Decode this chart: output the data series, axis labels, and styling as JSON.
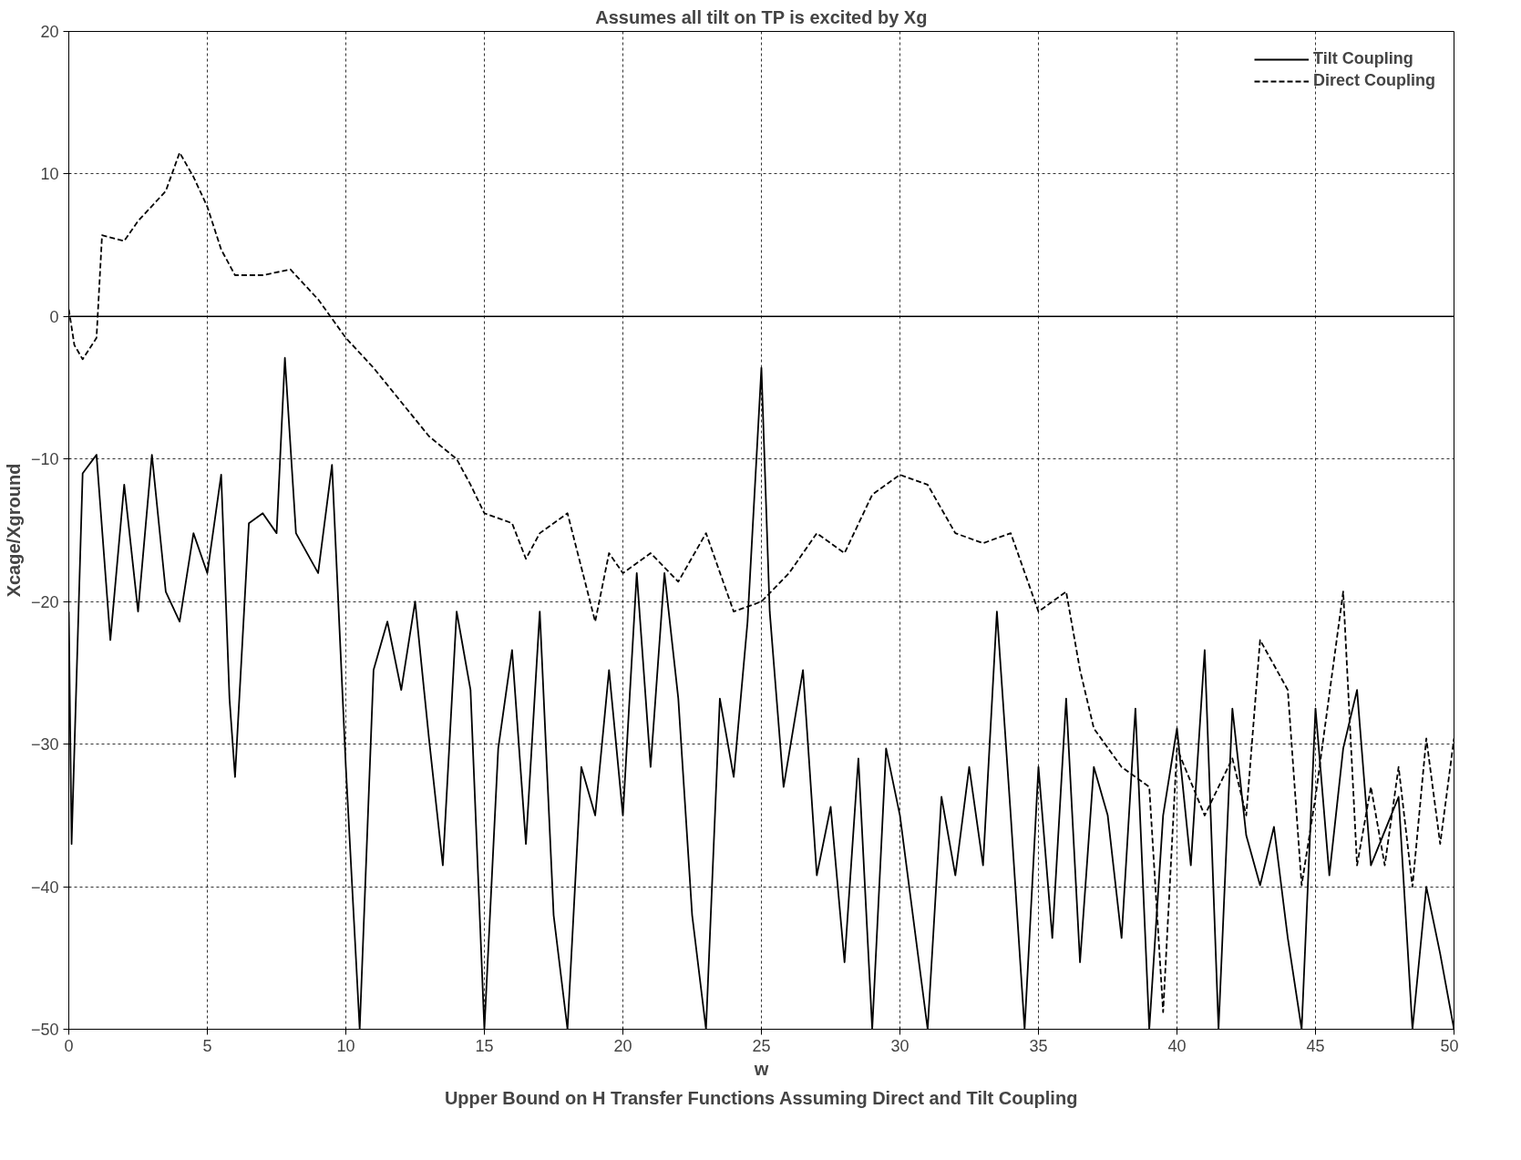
{
  "chart_data": {
    "type": "line",
    "title": "Assumes all tilt on TP is excited by Xg",
    "xlabel": "w",
    "ylabel": "Xcage/Xground",
    "annotations": [
      "Upper Bound on H Transfer Functions Assuming Direct and Tilt Coupling"
    ],
    "xlim": [
      0,
      50
    ],
    "ylim": [
      -50,
      20
    ],
    "xticks": [
      0,
      5,
      10,
      15,
      20,
      25,
      30,
      35,
      40,
      45,
      50
    ],
    "yticks": [
      -50,
      -40,
      -30,
      -20,
      -10,
      0,
      10,
      20
    ],
    "grid": true,
    "legend": "top right",
    "marker": "none",
    "ref_lines": [
      {
        "axis": "y",
        "value": 0,
        "color": "#000000",
        "line_style": "solid"
      }
    ],
    "series": [
      {
        "name": "Tilt Coupling",
        "color": "#000000",
        "line_style": "solid",
        "x": [
          0,
          0.1,
          0.3,
          0.5,
          1,
          1.5,
          2,
          2.5,
          3,
          3.5,
          4,
          4.5,
          5,
          5.5,
          5.8,
          6,
          6.5,
          7,
          7.5,
          7.8,
          8.2,
          9,
          9.5,
          10,
          10.5,
          11,
          11.5,
          12,
          12.5,
          13,
          13.5,
          14,
          14.5,
          15,
          15.5,
          16,
          16.5,
          17,
          17.5,
          18,
          18.5,
          19,
          19.5,
          20,
          20.5,
          21,
          21.5,
          22,
          22.5,
          23,
          23.5,
          24,
          24.5,
          25,
          25.3,
          25.8,
          26.5,
          27,
          27.5,
          28,
          28.5,
          29,
          29.5,
          30,
          31,
          31.5,
          32,
          32.5,
          33,
          33.5,
          34,
          34.5,
          35,
          35.5,
          36,
          36.5,
          37,
          37.5,
          38,
          38.5,
          39,
          39.5,
          40,
          40.5,
          41,
          41.5,
          42,
          42.5,
          43,
          43.5,
          44,
          44.5,
          45,
          45.5,
          46,
          46.5,
          47,
          48,
          48.5,
          49,
          49.5,
          50
        ],
        "values": [
          -20.7,
          -37,
          -24,
          -11,
          -9.7,
          -22.7,
          -11.8,
          -20.7,
          -9.7,
          -19.3,
          -21.4,
          -15.2,
          -18,
          -11.1,
          -26.8,
          -32.3,
          -14.5,
          -13.8,
          -15.2,
          -2.9,
          -15.2,
          -18,
          -10.4,
          -31.6,
          -50,
          -24.8,
          -21.4,
          -26.2,
          -20,
          -29.6,
          -38.5,
          -20.7,
          -26.2,
          -50,
          -30.3,
          -23.4,
          -37,
          -20.7,
          -42,
          -50,
          -31.6,
          -35,
          -24.8,
          -35,
          -18,
          -31.6,
          -18,
          -26.8,
          -42,
          -50,
          -26.8,
          -32.3,
          -21.4,
          -3.6,
          -20.7,
          -33,
          -24.8,
          -39.2,
          -34.4,
          -45.3,
          -31,
          -50,
          -30.3,
          -35,
          -50,
          -33.7,
          -39.2,
          -31.6,
          -38.5,
          -20.7,
          -35,
          -50,
          -31.6,
          -43.6,
          -26.8,
          -45.3,
          -31.6,
          -35,
          -43.6,
          -27.5,
          -50,
          -35,
          -28.9,
          -38.5,
          -23.4,
          -50,
          -27.5,
          -36.4,
          -39.9,
          -35.8,
          -43.6,
          -50,
          -27.5,
          -39.2,
          -30.3,
          -26.2,
          -38.5,
          -33.7,
          -50,
          -40,
          -44.7,
          -50
        ]
      },
      {
        "name": "Direct Coupling",
        "color": "#000000",
        "line_style": "dashed",
        "x": [
          0,
          0.2,
          0.5,
          1,
          1.2,
          2,
          2.5,
          3.5,
          4,
          4.5,
          5,
          5.5,
          6,
          7,
          8,
          9,
          10,
          11,
          12,
          13,
          14,
          14.5,
          15,
          16,
          16.5,
          17,
          18,
          19,
          19.5,
          20,
          21,
          22,
          23,
          24,
          25,
          26,
          27,
          28,
          29,
          30,
          31,
          32,
          33,
          34,
          35,
          36,
          36.5,
          37,
          38,
          39,
          39.5,
          40,
          41,
          42,
          42.5,
          43,
          44,
          44.5,
          45,
          46,
          46.5,
          47,
          47.5,
          48,
          48.5,
          49,
          49.5,
          50
        ],
        "values": [
          0.5,
          -2,
          -3,
          -1.5,
          5.7,
          5.3,
          6.7,
          8.8,
          11.5,
          9.8,
          7.7,
          4.7,
          2.9,
          2.9,
          3.3,
          1.2,
          -1.5,
          -3.6,
          -6,
          -8.4,
          -10,
          -11.8,
          -13.8,
          -14.5,
          -17,
          -15.2,
          -13.8,
          -21.4,
          -16.6,
          -18,
          -16.6,
          -18.6,
          -15.2,
          -20.7,
          -20,
          -18,
          -15.2,
          -16.6,
          -12.5,
          -11.1,
          -11.8,
          -15.2,
          -15.9,
          -15.2,
          -20.7,
          -19.3,
          -24.8,
          -28.9,
          -31.6,
          -33,
          -48.8,
          -30.3,
          -35,
          -31,
          -35,
          -22.7,
          -26.2,
          -39.9,
          -33.7,
          -19.3,
          -38.5,
          -33,
          -38.5,
          -31.6,
          -40,
          -29.6,
          -37,
          -29.6
        ]
      }
    ]
  }
}
